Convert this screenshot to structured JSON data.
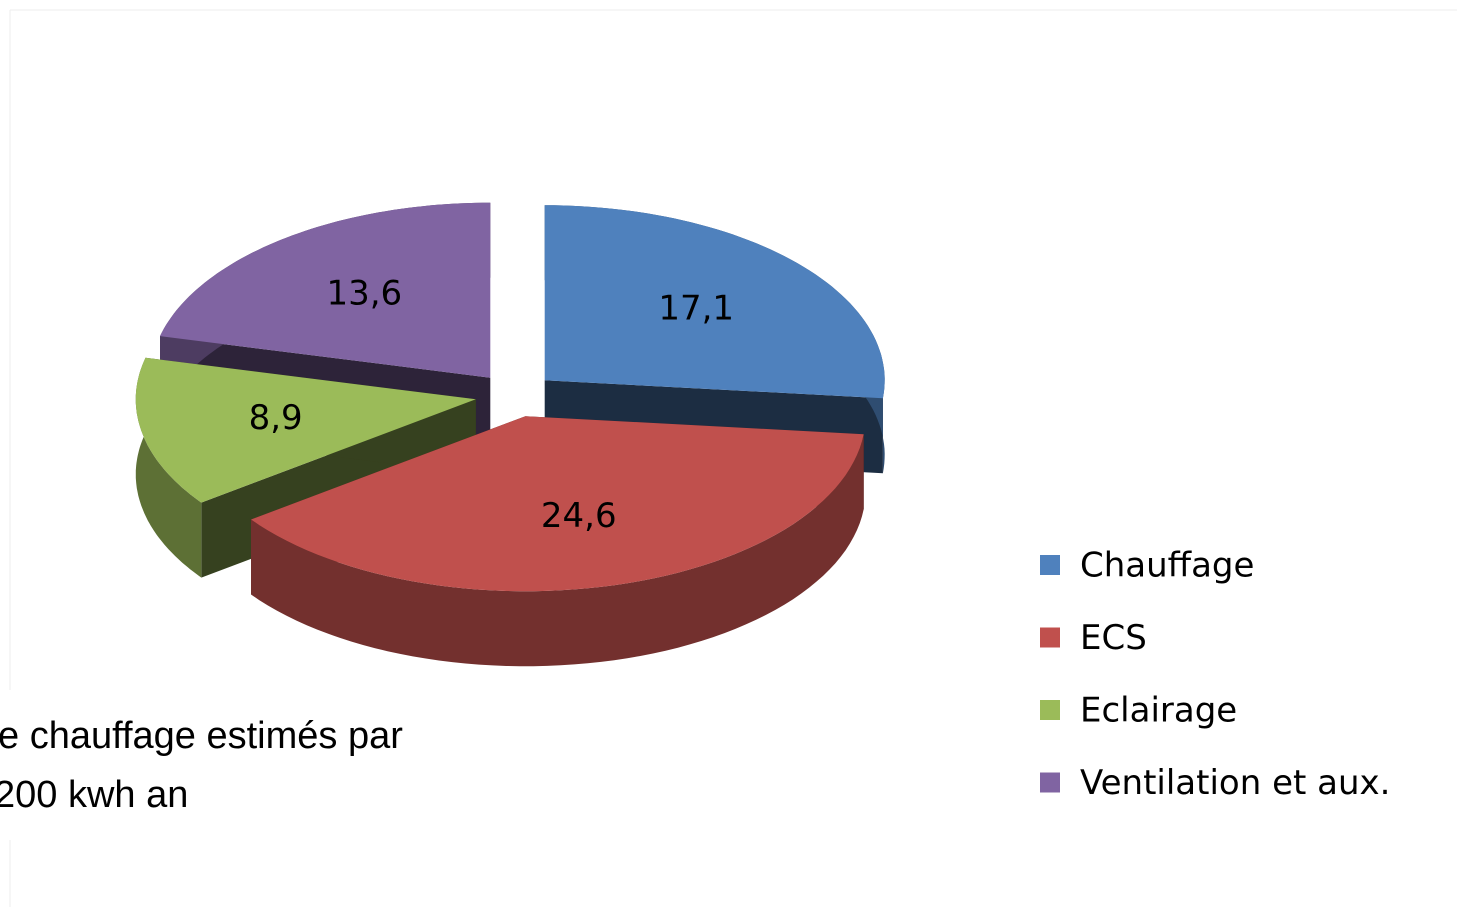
{
  "chart_data": {
    "type": "pie3d",
    "categories": [
      "Chauffage",
      "ECS",
      "Eclairage",
      "Ventilation et aux."
    ],
    "values": [
      17.1,
      24.6,
      8.9,
      13.6
    ],
    "value_labels": [
      "17,1",
      "24,6",
      "8,9",
      "13,6"
    ],
    "colors": [
      "#4f81bd",
      "#c0504d",
      "#9bbb59",
      "#8064a2"
    ],
    "legend": "right",
    "annotations": [
      "e chauffage estimés par",
      "200 kwh an"
    ]
  }
}
